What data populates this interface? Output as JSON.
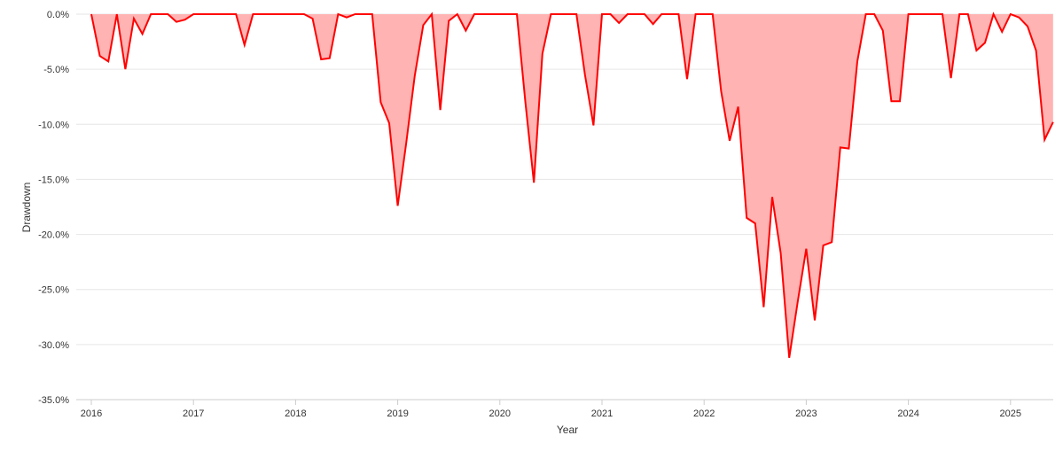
{
  "chart_data": {
    "type": "area",
    "title": "",
    "xlabel": "Year",
    "ylabel": "Drawdown",
    "ylim": [
      -35,
      0
    ],
    "xlim": [
      "2016-01",
      "2025-06"
    ],
    "grid": true,
    "legend": "none",
    "colors": {
      "line": "#ff0000",
      "fill": "#ffb3b3",
      "grid": "#e6e6e6",
      "axis": "#cccccc"
    },
    "y_ticks": [
      {
        "value": 0,
        "label": "0.0%"
      },
      {
        "value": -5,
        "label": "-5.0%"
      },
      {
        "value": -10,
        "label": "-10.0%"
      },
      {
        "value": -15,
        "label": "-15.0%"
      },
      {
        "value": -20,
        "label": "-20.0%"
      },
      {
        "value": -25,
        "label": "-25.0%"
      },
      {
        "value": -30,
        "label": "-30.0%"
      },
      {
        "value": -35,
        "label": "-35.0%"
      }
    ],
    "x_ticks": [
      {
        "value": "2016-01",
        "label": "2016"
      },
      {
        "value": "2017-01",
        "label": "2017"
      },
      {
        "value": "2018-01",
        "label": "2018"
      },
      {
        "value": "2019-01",
        "label": "2019"
      },
      {
        "value": "2020-01",
        "label": "2020"
      },
      {
        "value": "2021-01",
        "label": "2021"
      },
      {
        "value": "2022-01",
        "label": "2022"
      },
      {
        "value": "2023-01",
        "label": "2023"
      },
      {
        "value": "2024-01",
        "label": "2024"
      },
      {
        "value": "2025-01",
        "label": "2025"
      }
    ],
    "series": [
      {
        "x": [
          "2016-01",
          "2016-02",
          "2016-03",
          "2016-04",
          "2016-05",
          "2016-06",
          "2016-07",
          "2016-08",
          "2016-09",
          "2016-10",
          "2016-11",
          "2016-12",
          "2017-01",
          "2017-02",
          "2017-03",
          "2017-04",
          "2017-05",
          "2017-06",
          "2017-07",
          "2017-08",
          "2017-09",
          "2017-10",
          "2017-11",
          "2017-12",
          "2018-01",
          "2018-02",
          "2018-03",
          "2018-04",
          "2018-05",
          "2018-06",
          "2018-07",
          "2018-08",
          "2018-09",
          "2018-10",
          "2018-11",
          "2018-12",
          "2019-01",
          "2019-02",
          "2019-03",
          "2019-04",
          "2019-05",
          "2019-06",
          "2019-07",
          "2019-08",
          "2019-09",
          "2019-10",
          "2019-11",
          "2019-12",
          "2020-01",
          "2020-02",
          "2020-03",
          "2020-04",
          "2020-05",
          "2020-06",
          "2020-07",
          "2020-08",
          "2020-09",
          "2020-10",
          "2020-11",
          "2020-12",
          "2021-01",
          "2021-02",
          "2021-03",
          "2021-04",
          "2021-05",
          "2021-06",
          "2021-07",
          "2021-08",
          "2021-09",
          "2021-10",
          "2021-11",
          "2021-12",
          "2022-01",
          "2022-02",
          "2022-03",
          "2022-04",
          "2022-05",
          "2022-06",
          "2022-07",
          "2022-08",
          "2022-09",
          "2022-10",
          "2022-11",
          "2022-12",
          "2023-01",
          "2023-02",
          "2023-03",
          "2023-04",
          "2023-05",
          "2023-06",
          "2023-07",
          "2023-08",
          "2023-09",
          "2023-10",
          "2023-11",
          "2023-12",
          "2024-01",
          "2024-02",
          "2024-03",
          "2024-04",
          "2024-05",
          "2024-06",
          "2024-07",
          "2024-08",
          "2024-09",
          "2024-10",
          "2024-11",
          "2024-12",
          "2025-01",
          "2025-02",
          "2025-03",
          "2025-04",
          "2025-05",
          "2025-06"
        ],
        "values": [
          0.0,
          -3.8,
          -4.3,
          0.0,
          -5.0,
          -0.4,
          -1.8,
          0.0,
          0.0,
          0.0,
          -0.7,
          -0.5,
          0.0,
          0.0,
          0.0,
          0.0,
          0.0,
          0.0,
          -2.8,
          0.0,
          0.0,
          0.0,
          0.0,
          0.0,
          0.0,
          0.0,
          -0.4,
          -4.1,
          -4.0,
          0.0,
          -0.3,
          0.0,
          0.0,
          0.0,
          -8.0,
          -9.9,
          -17.4,
          -11.7,
          -5.6,
          -1.0,
          0.0,
          -8.7,
          -0.6,
          0.0,
          -1.5,
          0.0,
          0.0,
          0.0,
          0.0,
          0.0,
          0.0,
          -8.0,
          -15.3,
          -3.6,
          0.0,
          0.0,
          0.0,
          0.0,
          -5.5,
          -10.1,
          0.0,
          0.0,
          -0.8,
          0.0,
          0.0,
          0.0,
          -0.9,
          0.0,
          0.0,
          0.0,
          -5.9,
          0.0,
          0.0,
          0.0,
          -7.0,
          -11.5,
          -8.4,
          -18.5,
          -19.0,
          -26.6,
          -16.6,
          -21.7,
          -31.2,
          -26.1,
          -21.3,
          -27.8,
          -21.0,
          -20.7,
          -12.1,
          -12.2,
          -4.3,
          0.0,
          0.0,
          -1.5,
          -7.9,
          -7.9,
          0.0,
          0.0,
          0.0,
          0.0,
          0.0,
          -5.8,
          0.0,
          0.0,
          -3.3,
          -2.6,
          0.0,
          -1.6,
          0.0,
          -0.3,
          -1.1,
          -3.3,
          -11.4,
          -9.8
        ]
      }
    ]
  }
}
